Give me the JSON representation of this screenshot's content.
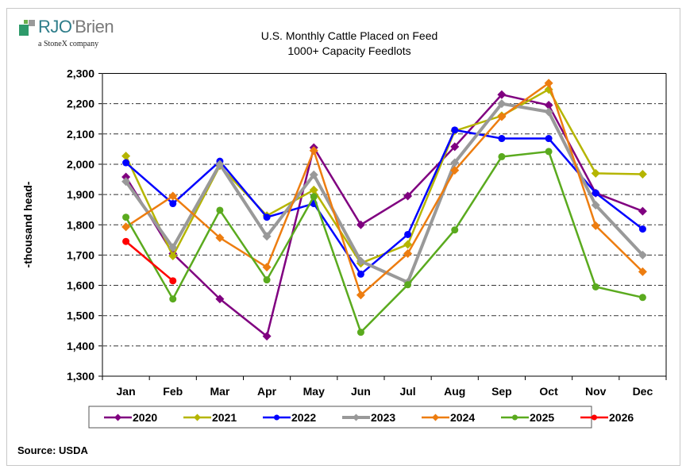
{
  "logo": {
    "brand": "RJO'Brien",
    "brand_prefix": "RJO",
    "brand_suffix": "'Brien",
    "tagline": "a StoneX company"
  },
  "chart_data": {
    "type": "line",
    "title": "U.S. Monthly Cattle Placed on Feed",
    "subtitle": "1000+ Capacity Feedlots",
    "xlabel": "",
    "ylabel": "-thousand head-",
    "ylim": [
      1300,
      2300
    ],
    "yticks": [
      1300,
      1400,
      1500,
      1600,
      1700,
      1800,
      1900,
      2000,
      2100,
      2200,
      2300
    ],
    "ytick_labels": [
      "1,300",
      "1,400",
      "1,500",
      "1,600",
      "1,700",
      "1,800",
      "1,900",
      "2,000",
      "2,100",
      "2,200",
      "2,300"
    ],
    "grid": "horizontal dashed",
    "legend_position": "bottom",
    "categories": [
      "Jan",
      "Feb",
      "Mar",
      "Apr",
      "May",
      "Jun",
      "Jul",
      "Aug",
      "Sep",
      "Oct",
      "Nov",
      "Dec"
    ],
    "series": [
      {
        "name": "2020",
        "color": "#800080",
        "marker": "diamond",
        "values": [
          1958,
          1705,
          1555,
          1432,
          2055,
          1800,
          1895,
          2058,
          2230,
          2195,
          1905,
          1845
        ]
      },
      {
        "name": "2021",
        "color": "#b5b500",
        "marker": "diamond",
        "values": [
          2027,
          1697,
          1995,
          1830,
          1915,
          1673,
          1735,
          2110,
          2160,
          2247,
          1970,
          1967
        ]
      },
      {
        "name": "2022",
        "color": "#0000ff",
        "marker": "circle",
        "values": [
          2005,
          1870,
          2010,
          1825,
          1870,
          1637,
          1768,
          2113,
          2085,
          2085,
          1905,
          1786
        ]
      },
      {
        "name": "2023",
        "color": "#999999",
        "marker": "diamond",
        "values": [
          1943,
          1725,
          2000,
          1762,
          1965,
          1680,
          1610,
          2005,
          2200,
          2173,
          1865,
          1700
        ]
      },
      {
        "name": "2024",
        "color": "#ed7d10",
        "marker": "diamond",
        "values": [
          1793,
          1895,
          1757,
          1660,
          2045,
          1568,
          1705,
          1980,
          2157,
          2268,
          1797,
          1645
        ]
      },
      {
        "name": "2025",
        "color": "#5aaa1e",
        "marker": "circle",
        "values": [
          1825,
          1555,
          1848,
          1618,
          1893,
          1445,
          1602,
          1783,
          2025,
          2042,
          1595,
          1560
        ]
      },
      {
        "name": "2026",
        "color": "#ff0000",
        "marker": "circle",
        "values": [
          1745,
          1615,
          null,
          null,
          null,
          null,
          null,
          null,
          null,
          null,
          null,
          null
        ]
      }
    ]
  },
  "footer": {
    "source": "Source: USDA"
  }
}
